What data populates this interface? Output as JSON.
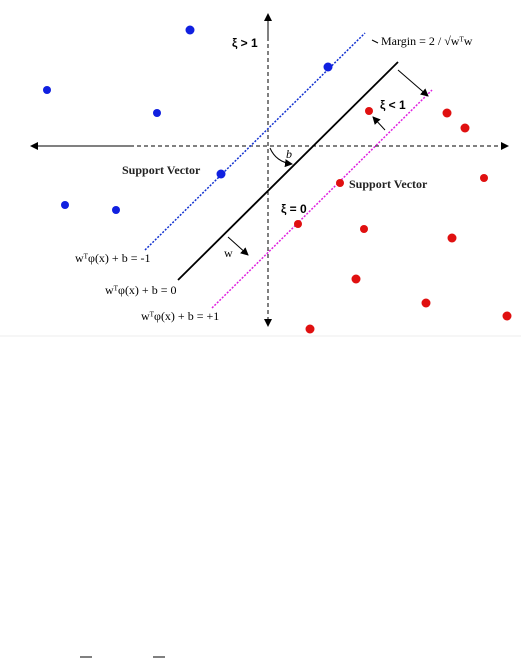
{
  "labels": {
    "xi_gt_1": "ξ > 1",
    "margin": "Margin = 2 / √wᵀw",
    "xi_lt_1": "ξ < 1",
    "b": "b",
    "support_vector_left": "Support Vector",
    "support_vector_right": "Support Vector",
    "xi_eq_0": "ξ = 0",
    "w": "w",
    "eq_minus": "wᵀφ(x) + b = -1",
    "eq_zero": "wᵀφ(x) + b = 0",
    "eq_plus": "wᵀφ(x) + b = +1"
  }
}
